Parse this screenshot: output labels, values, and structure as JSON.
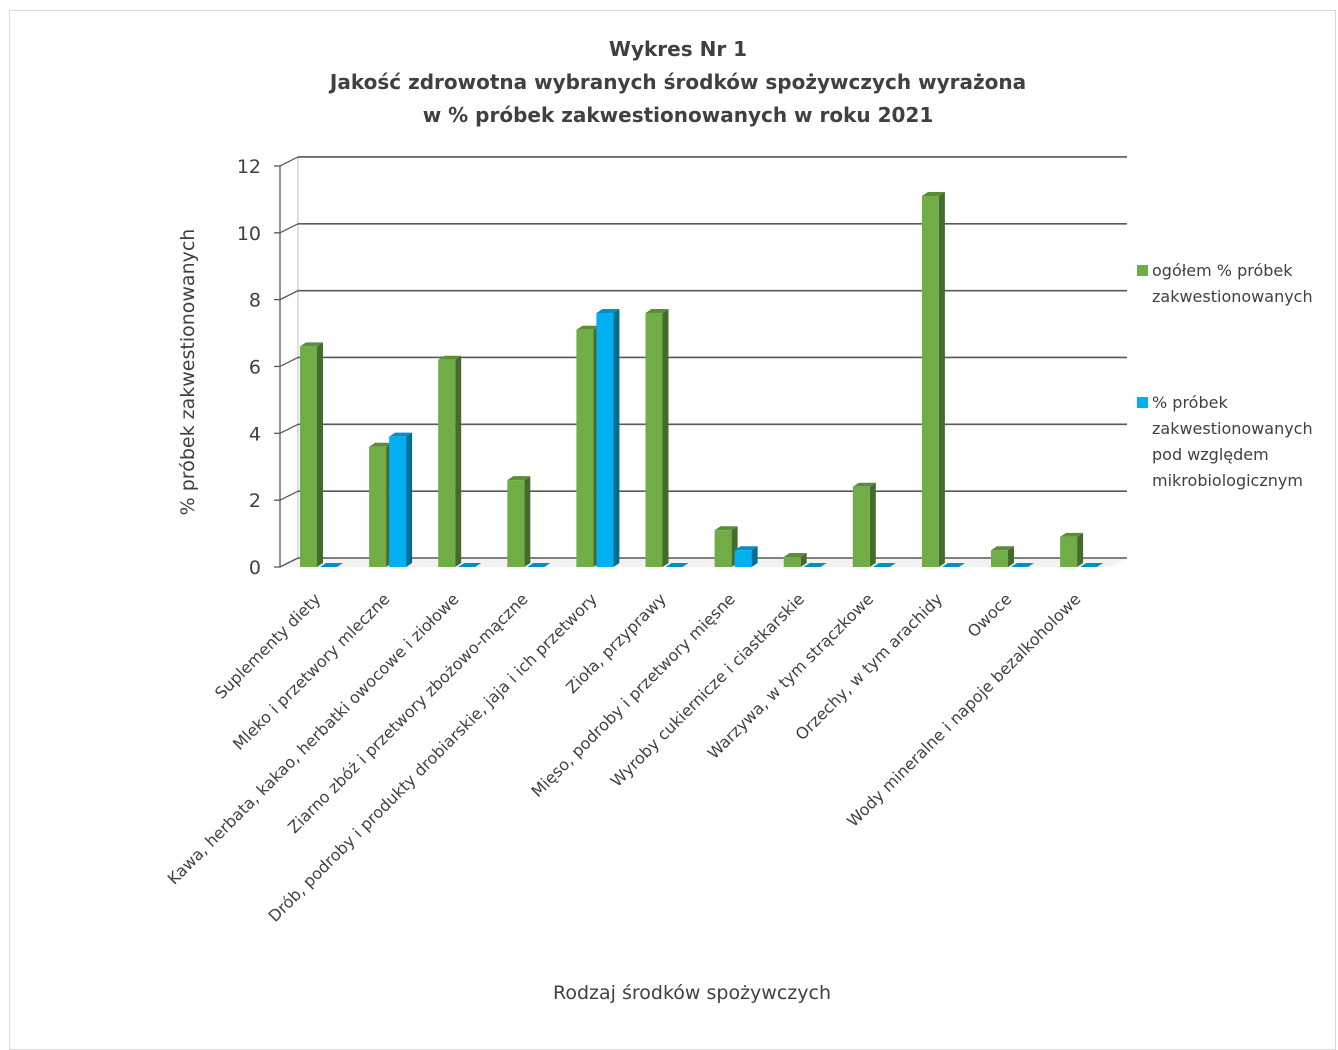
{
  "chart_data": {
    "type": "bar",
    "title": [
      "Wykres Nr 1",
      "Jakość zdrowotna wybranych środków spożywczych wyrażona",
      "w % próbek zakwestionowanych w roku 2021"
    ],
    "xlabel": "Rodzaj środków spożywczych",
    "ylabel": "% próbek zakwestionowanych",
    "ylim": [
      0,
      12
    ],
    "yticks": [
      "0",
      "2",
      "4",
      "6",
      "8",
      "10",
      "12"
    ],
    "grid": true,
    "legend_position": "right",
    "categories": [
      "Suplementy diety",
      "Mleko i przetwory mleczne",
      "Kawa, herbata, kakao, herbatki owocowe i ziołowe",
      "Ziarno zbóż i przetwory zbożowo-mączne",
      "Drób, podroby i produkty drobiarskie, jaja i ich przetwory",
      "Zioła, przyprawy",
      "Mięso, podroby i przetwory mięsne",
      "Wyroby cukiernicze i ciastkarskie",
      "Warzywa, w tym strączkowe",
      "Orzechy, w tym arachidy",
      "Owoce",
      "Wody mineralne i napoje bezalkoholowe"
    ],
    "series": [
      {
        "name": [
          "ogółem % próbek",
          "zakwestionowanych"
        ],
        "color": "#70ad47",
        "values": [
          6.6,
          3.6,
          6.2,
          2.6,
          7.1,
          7.6,
          1.1,
          0.3,
          2.4,
          11.1,
          0.5,
          0.9
        ]
      },
      {
        "name": [
          "% próbek",
          "zakwestionowanych",
          "pod względem",
          "mikrobiologicznym"
        ],
        "color": "#00b0f0",
        "values": [
          0,
          3.9,
          0,
          0,
          7.6,
          0,
          0.5,
          0,
          0,
          0,
          0,
          0
        ]
      }
    ]
  }
}
